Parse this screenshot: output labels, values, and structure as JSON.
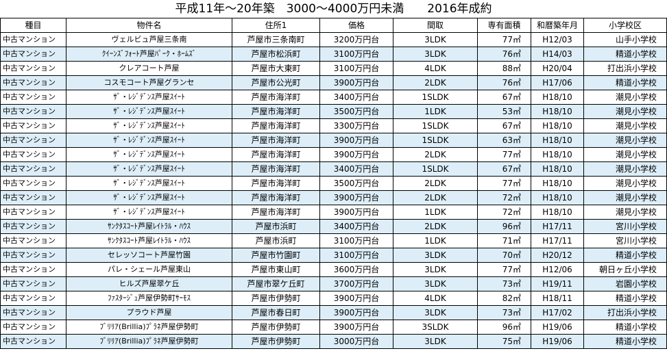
{
  "title": "平成11年〜20年築　3000〜4000万円未満　　2016年成約",
  "columns": [
    "種目",
    "物件名",
    "住所1",
    "価格",
    "間取",
    "専有面積",
    "和暦築年月",
    "小学校区"
  ],
  "rows": [
    [
      "中古マンション",
      "ヴェルビュ芦屋三条南",
      "芦屋市三条南町",
      "3200万円台",
      "3LDK",
      "77㎡",
      "H12/03",
      "山手小学校"
    ],
    [
      "中古マンション",
      "ｸｲｰﾝｽﾞﾌｫｰﾄ芦屋ﾊﾟｰｸ・ﾎｰﾑｽﾞ",
      "芦屋市松浜町",
      "3100万円台",
      "3LDK",
      "76㎡",
      "H14/03",
      "精道小学校"
    ],
    [
      "中古マンション",
      "クレアコート芦屋",
      "芦屋市大東町",
      "3100万円台",
      "4LDK",
      "88㎡",
      "H20/04",
      "打出浜小学校"
    ],
    [
      "中古マンション",
      "コスモコート芦屋グランセ",
      "芦屋市公光町",
      "3900万円台",
      "2LDK",
      "76㎡",
      "H17/06",
      "精道小学校"
    ],
    [
      "中古マンション",
      "ｻﾞ・ﾚｼﾞﾃﾞﾝｽ芦屋ｽｲｰﾄ",
      "芦屋市海洋町",
      "3400万円台",
      "1SLDK",
      "67㎡",
      "H18/10",
      "潮見小学校"
    ],
    [
      "中古マンション",
      "ｻﾞ・ﾚｼﾞﾃﾞﾝｽ芦屋ｽｲｰﾄ",
      "芦屋市海洋町",
      "3500万円台",
      "1LDK",
      "53㎡",
      "H18/10",
      "潮見小学校"
    ],
    [
      "中古マンション",
      "ｻﾞ・ﾚｼﾞﾃﾞﾝｽ芦屋ｽｲｰﾄ",
      "芦屋市海洋町",
      "3300万円台",
      "1SLDK",
      "67㎡",
      "H18/10",
      "潮見小学校"
    ],
    [
      "中古マンション",
      "ｻﾞ・ﾚｼﾞﾃﾞﾝｽ芦屋ｽｲｰﾄ",
      "芦屋市海洋町",
      "3900万円台",
      "1SLDK",
      "63㎡",
      "H18/10",
      "潮見小学校"
    ],
    [
      "中古マンション",
      "ｻﾞ・ﾚｼﾞﾃﾞﾝｽ芦屋ｽｲｰﾄ",
      "芦屋市海洋町",
      "3900万円台",
      "2LDK",
      "77㎡",
      "H18/10",
      "潮見小学校"
    ],
    [
      "中古マンション",
      "ｻﾞ・ﾚｼﾞﾃﾞﾝｽ芦屋ｽｲｰﾄ",
      "芦屋市海洋町",
      "3400万円台",
      "1SLDK",
      "67㎡",
      "H18/10",
      "潮見小学校"
    ],
    [
      "中古マンション",
      "ｻﾞ・ﾚｼﾞﾃﾞﾝｽ芦屋ｽｲｰﾄ",
      "芦屋市海洋町",
      "3500万円台",
      "2LDK",
      "77㎡",
      "H18/10",
      "潮見小学校"
    ],
    [
      "中古マンション",
      "ｻﾞ・ﾚｼﾞﾃﾞﾝｽ芦屋ｽｲｰﾄ",
      "芦屋市海洋町",
      "3900万円台",
      "2LDK",
      "72㎡",
      "H18/10",
      "潮見小学校"
    ],
    [
      "中古マンション",
      "ｻﾞ・ﾚｼﾞﾃﾞﾝｽ芦屋ｽｲｰﾄ",
      "芦屋市海洋町",
      "3900万円台",
      "1LDK",
      "72㎡",
      "H18/10",
      "潮見小学校"
    ],
    [
      "中古マンション",
      "ｻﾝｸﾀｽｺｰﾄ芦屋ﾚｲﾄﾗﾙ・ﾊｳｽ",
      "芦屋市浜町",
      "3400万円台",
      "2LDK",
      "96㎡",
      "H17/11",
      "宮川小学校"
    ],
    [
      "中古マンション",
      "ｻﾝｸﾀｽｺｰﾄ芦屋ﾚｲﾄﾗﾙ・ﾊｳｽ",
      "芦屋市浜町",
      "3100万円台",
      "1LDK",
      "71㎡",
      "H17/11",
      "宮川小学校"
    ],
    [
      "中古マンション",
      "セレッソコート芦屋竹園",
      "芦屋市竹園町",
      "3100万円台",
      "3LDK",
      "70㎡",
      "H20/12",
      "精道小学校"
    ],
    [
      "中古マンション",
      "パレ・シェール芦屋東山",
      "芦屋市東山町",
      "3600万円台",
      "3LDK",
      "77㎡",
      "H12/06",
      "朝日ヶ丘小学校"
    ],
    [
      "中古マンション",
      "ヒルズ芦屋翠ケ丘",
      "芦屋市翠ケ丘町",
      "3700万円台",
      "3LDK",
      "73㎡",
      "H19/11",
      "岩園小学校"
    ],
    [
      "中古マンション",
      "ﾌｧｽﾀｰｼﾞｭ芦屋伊勢町ｻｰﾓｽ",
      "芦屋市伊勢町",
      "3900万円台",
      "4LDK",
      "82㎡",
      "H18/11",
      "精道小学校"
    ],
    [
      "中古マンション",
      "プラウド芦屋",
      "芦屋市春日町",
      "3900万円台",
      "3LDK",
      "73㎡",
      "H17/02",
      "打出浜小学校"
    ],
    [
      "中古マンション",
      "ﾌﾞﾘﾘｱ(Brillia)ﾌﾟﾗﾈ芦屋伊勢町",
      "芦屋市伊勢町",
      "3900万円台",
      "3SLDK",
      "96㎡",
      "H19/06",
      "精道小学校"
    ],
    [
      "中古マンション",
      "ﾌﾞﾘﾘｱ(Brillia)ﾌﾟﾗﾈ芦屋伊勢町",
      "芦屋市伊勢町",
      "3000万円台",
      "3LDK",
      "75㎡",
      "H19/06",
      "精道小学校"
    ]
  ]
}
